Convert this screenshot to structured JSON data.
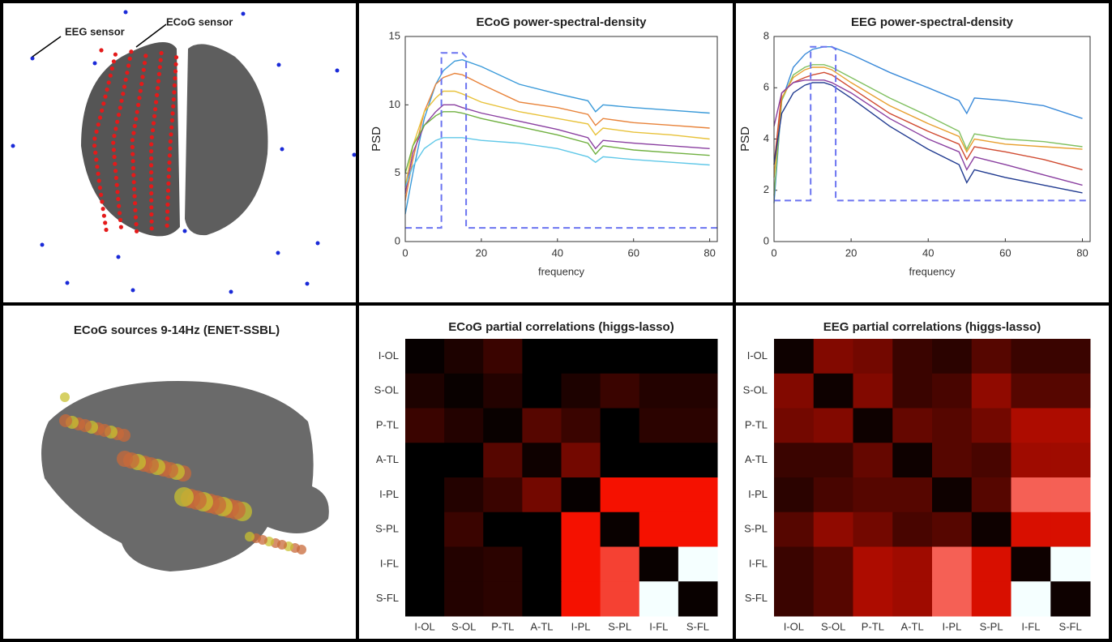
{
  "annotations": {
    "eeg_sensor": "EEG sensor",
    "ecog_sensor": "ECoG sensor",
    "sources_title": "ECoG sources 9-14Hz (ENET-SSBL)"
  },
  "chart_data": [
    {
      "type": "line",
      "title": "ECoG power-spectral-density",
      "xlabel": "frequency",
      "ylabel": "PSD",
      "x": [
        0,
        2,
        5,
        8,
        10,
        13,
        15,
        20,
        30,
        40,
        48,
        50,
        52,
        60,
        70,
        80
      ],
      "xlim": [
        0,
        82
      ],
      "ylim": [
        0,
        15
      ],
      "xticks": [
        0,
        20,
        40,
        60,
        80
      ],
      "yticks": [
        0,
        5,
        10,
        15
      ],
      "series": [
        {
          "color": "#3a9ad9",
          "values": [
            2,
            5,
            9,
            11.5,
            12.5,
            13.2,
            13.3,
            12.8,
            11.5,
            10.8,
            10.3,
            9.5,
            10,
            9.8,
            9.6,
            9.4
          ]
        },
        {
          "color": "#e8833a",
          "values": [
            3,
            6,
            9.5,
            11.5,
            12,
            12.3,
            12.2,
            11.5,
            10.2,
            9.8,
            9.3,
            8.5,
            9,
            8.7,
            8.5,
            8.3
          ]
        },
        {
          "color": "#e8c23a",
          "values": [
            4,
            7,
            9.5,
            10.5,
            11,
            11,
            10.8,
            10.2,
            9.5,
            9,
            8.6,
            7.8,
            8.3,
            8,
            7.8,
            7.5
          ]
        },
        {
          "color": "#8a3fa0",
          "values": [
            3.5,
            6.5,
            8.5,
            9.5,
            10,
            10,
            9.8,
            9.4,
            8.8,
            8.2,
            7.6,
            6.8,
            7.4,
            7.2,
            7,
            6.8
          ]
        },
        {
          "color": "#70b040",
          "values": [
            5,
            7,
            8.5,
            9.2,
            9.5,
            9.5,
            9.4,
            9,
            8.4,
            7.8,
            7.2,
            6.4,
            7,
            6.7,
            6.5,
            6.3
          ]
        },
        {
          "color": "#60c8e8",
          "values": [
            4,
            5.5,
            6.8,
            7.4,
            7.6,
            7.6,
            7.6,
            7.4,
            7.2,
            6.8,
            6.2,
            5.8,
            6.2,
            6,
            5.8,
            5.6
          ]
        },
        {
          "color": "#6b74f0",
          "dash": true,
          "x": [
            0,
            9.5,
            9.5,
            15,
            16,
            16,
            82
          ],
          "values": [
            1,
            1,
            13.8,
            13.8,
            13.5,
            1,
            1
          ]
        }
      ]
    },
    {
      "type": "line",
      "title": "EEG power-spectral-density",
      "xlabel": "frequency",
      "ylabel": "PSD",
      "x": [
        0,
        2,
        5,
        8,
        10,
        13,
        15,
        20,
        30,
        40,
        48,
        50,
        52,
        60,
        70,
        80
      ],
      "xlim": [
        0,
        82
      ],
      "ylim": [
        0,
        8
      ],
      "xticks": [
        0,
        20,
        40,
        60,
        80
      ],
      "yticks": [
        0,
        2,
        4,
        6,
        8
      ],
      "series": [
        {
          "color": "#3a8ad9",
          "values": [
            1.5,
            5.5,
            6.8,
            7.3,
            7.5,
            7.6,
            7.6,
            7.3,
            6.6,
            6,
            5.5,
            5,
            5.6,
            5.5,
            5.3,
            4.8
          ]
        },
        {
          "color": "#80c060",
          "values": [
            1.8,
            5.5,
            6.5,
            6.8,
            6.9,
            6.9,
            6.8,
            6.4,
            5.6,
            4.9,
            4.3,
            3.6,
            4.2,
            4,
            3.9,
            3.7
          ]
        },
        {
          "color": "#e8a030",
          "values": [
            2.5,
            5.6,
            6.4,
            6.7,
            6.8,
            6.8,
            6.7,
            6.2,
            5.3,
            4.6,
            4.1,
            3.5,
            4,
            3.8,
            3.7,
            3.6
          ]
        },
        {
          "color": "#d04a30",
          "values": [
            3,
            5.8,
            6.2,
            6.4,
            6.5,
            6.6,
            6.5,
            6,
            5,
            4.3,
            3.8,
            3.2,
            3.7,
            3.5,
            3.2,
            2.8
          ]
        },
        {
          "color": "#8a3fa0",
          "values": [
            4.5,
            5.8,
            6.2,
            6.3,
            6.3,
            6.3,
            6.2,
            5.8,
            4.8,
            4,
            3.5,
            2.8,
            3.3,
            3,
            2.6,
            2.2
          ]
        },
        {
          "color": "#203a90",
          "values": [
            3,
            5,
            5.8,
            6.1,
            6.2,
            6.2,
            6.1,
            5.6,
            4.5,
            3.6,
            3,
            2.3,
            2.8,
            2.5,
            2.2,
            1.9
          ]
        },
        {
          "color": "#6b74f0",
          "dash": true,
          "x": [
            0,
            9.5,
            9.5,
            15,
            16,
            16,
            82
          ],
          "values": [
            1.6,
            1.6,
            7.6,
            7.6,
            7.5,
            1.6,
            1.6
          ]
        }
      ]
    },
    {
      "type": "heatmap",
      "title": "ECoG partial correlations (higgs-lasso)",
      "categories": [
        "I-OL",
        "S-OL",
        "P-TL",
        "A-TL",
        "I-PL",
        "S-PL",
        "I-FL",
        "S-FL"
      ],
      "values": [
        [
          0.02,
          0.1,
          0.2,
          0,
          0,
          0,
          0,
          0
        ],
        [
          0.1,
          0.03,
          0.12,
          0,
          0.1,
          0.2,
          0.12,
          0.12
        ],
        [
          0.2,
          0.12,
          0.03,
          0.3,
          0.2,
          0,
          0.15,
          0.15
        ],
        [
          0,
          0,
          0.3,
          0.05,
          0.4,
          0,
          0,
          0
        ],
        [
          0,
          0.12,
          0.2,
          0.4,
          0.02,
          0.85,
          0.85,
          0.85
        ],
        [
          0,
          0.2,
          0,
          0,
          0.85,
          0.03,
          0.85,
          0.85
        ],
        [
          0,
          0.12,
          0.15,
          0,
          0.85,
          0.88,
          0.03,
          1
        ],
        [
          0,
          0.12,
          0.15,
          0,
          0.85,
          0.88,
          1,
          0.03
        ]
      ]
    },
    {
      "type": "heatmap",
      "title": "EEG partial correlations (higgs-lasso)",
      "categories": [
        "I-OL",
        "S-OL",
        "P-TL",
        "A-TL",
        "I-PL",
        "S-PL",
        "I-FL",
        "S-FL"
      ],
      "values": [
        [
          0.05,
          0.45,
          0.4,
          0.2,
          0.15,
          0.3,
          0.2,
          0.2
        ],
        [
          0.45,
          0.05,
          0.45,
          0.2,
          0.25,
          0.5,
          0.3,
          0.3
        ],
        [
          0.4,
          0.45,
          0.05,
          0.35,
          0.3,
          0.4,
          0.6,
          0.6
        ],
        [
          0.2,
          0.2,
          0.35,
          0.05,
          0.3,
          0.25,
          0.55,
          0.55
        ],
        [
          0.15,
          0.25,
          0.3,
          0.3,
          0.05,
          0.3,
          0.9,
          0.9
        ],
        [
          0.3,
          0.5,
          0.4,
          0.25,
          0.3,
          0.05,
          0.75,
          0.75
        ],
        [
          0.2,
          0.3,
          0.6,
          0.55,
          0.9,
          0.75,
          0.05,
          1
        ],
        [
          0.2,
          0.3,
          0.6,
          0.55,
          0.9,
          0.75,
          1,
          0.05
        ]
      ]
    }
  ]
}
